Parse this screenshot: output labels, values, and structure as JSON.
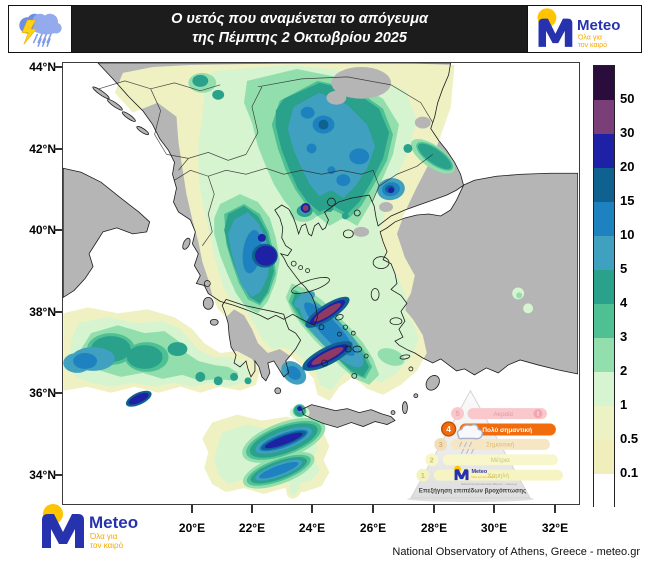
{
  "header": {
    "title_line1": "Ο υετός που αναμένεται το απόγευμα",
    "title_line2": "της Πέμπτης 2 Οκτωβρίου 2025"
  },
  "logo": {
    "name": "Meteo",
    "tagline_line1": "Όλα για",
    "tagline_line2": "τον καιρό"
  },
  "map": {
    "lat_labels": [
      "44°N",
      "42°N",
      "40°N",
      "38°N",
      "36°N",
      "34°N"
    ],
    "lon_labels": [
      "20°E",
      "22°E",
      "24°E",
      "26°E",
      "28°E",
      "30°E",
      "32°E"
    ]
  },
  "colorbar": {
    "tick_labels": [
      "50",
      "30",
      "20",
      "15",
      "10",
      "5",
      "4",
      "3",
      "2",
      "1",
      "0.5",
      "0.1"
    ],
    "colors_top_to_bottom": [
      "#2b0d3d",
      "#7a3e78",
      "#1e20a6",
      "#0f6290",
      "#1e81c0",
      "#3fa0c0",
      "#2aa18b",
      "#4fc094",
      "#92dfad",
      "#d5f4cf",
      "#edf2c5",
      "#f0efbc",
      "#ffffff"
    ]
  },
  "warning_pyramid": {
    "levels": [
      {
        "number": "5",
        "label": "Ακραία",
        "active": false
      },
      {
        "number": "4",
        "label": "Πολύ σημαντική",
        "active": true
      },
      {
        "number": "3",
        "label": "Σημαντική",
        "active": false
      },
      {
        "number": "2",
        "label": "Μέτρια",
        "active": false
      },
      {
        "number": "1",
        "label": "Χαμηλή",
        "active": false
      }
    ],
    "alert_mark": "!",
    "caption": "Επεξήγηση επιπέδων βροχόπτωσης",
    "logo_subtext": "Εθνικό Αστεροσκοπείο Αθηνών - meteo.gr"
  },
  "footer": {
    "attribution": "National Observatory of Athens, Greece - meteo.gr"
  }
}
